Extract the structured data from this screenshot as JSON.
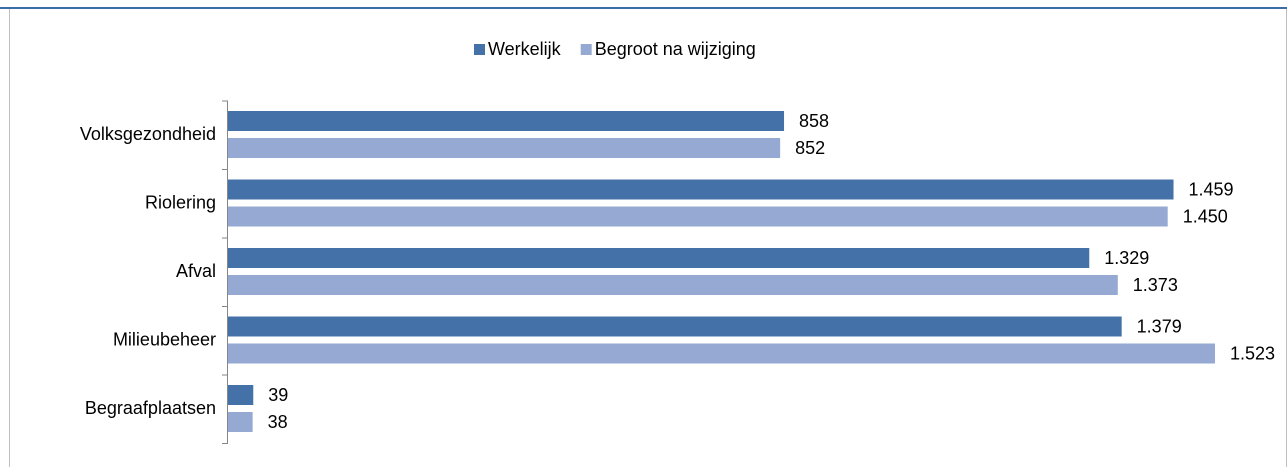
{
  "chart_data": {
    "type": "bar",
    "orientation": "horizontal",
    "categories": [
      "Volksgezondheid",
      "Riolering",
      "Afval",
      "Milieubeheer",
      "Begraafplaatsen"
    ],
    "series": [
      {
        "name": "Werkelijk",
        "color": "#4472a8",
        "values": [
          858,
          1459,
          1329,
          1379,
          39
        ],
        "value_labels": [
          "858",
          "1.459",
          "1.329",
          "1.379",
          "39"
        ]
      },
      {
        "name": "Begroot na wijziging",
        "color": "#95a9d3",
        "values": [
          852,
          1450,
          1373,
          1523,
          38
        ],
        "value_labels": [
          "852",
          "1.450",
          "1.373",
          "1.523",
          "38"
        ]
      }
    ],
    "legend": "top"
  }
}
